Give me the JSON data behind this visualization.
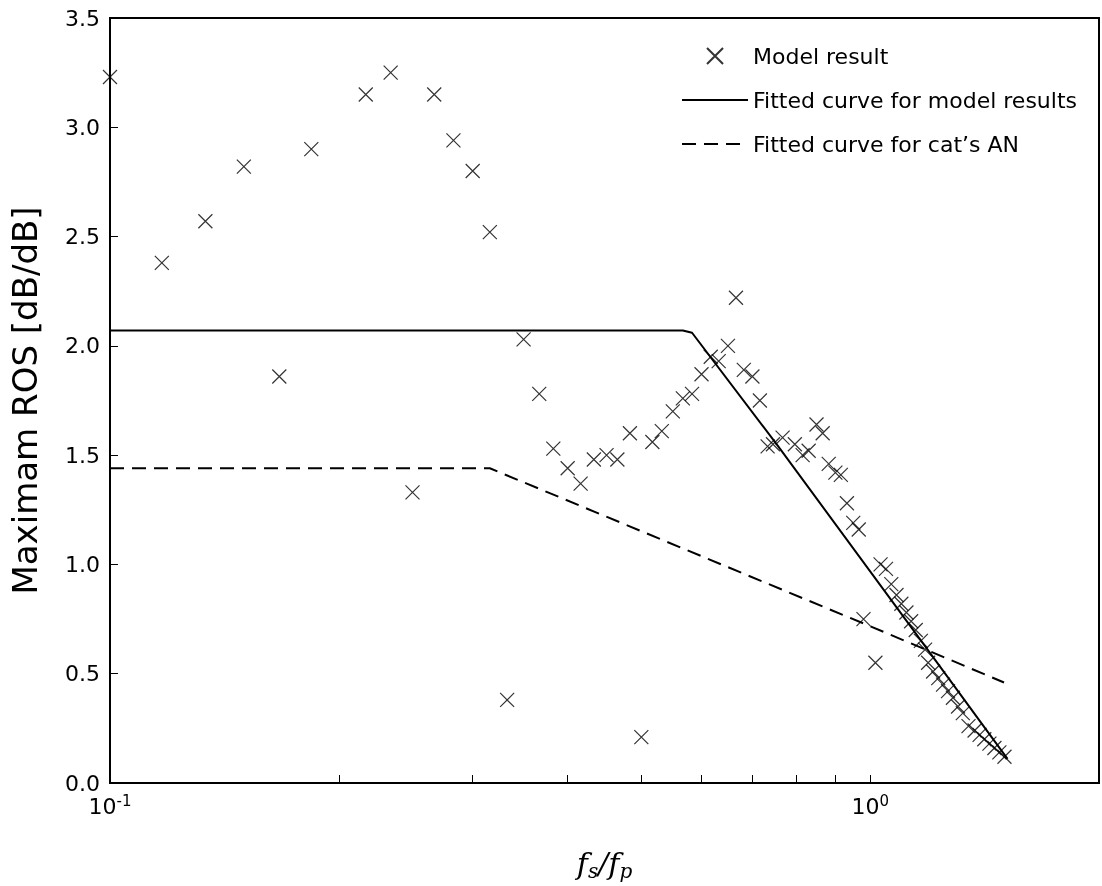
{
  "chart_data": {
    "type": "scatter",
    "xlabel": "f$_{s}$/f$_{p}$",
    "ylabel": "Maximam ROS [dB/dB]",
    "log": "x",
    "xlim": [
      0.1,
      2
    ],
    "ylim": [
      0,
      3.5
    ],
    "xticks": [
      {
        "value": 0.1,
        "label": "10$^{-1}$"
      },
      {
        "value": 0.2,
        "label": null
      },
      {
        "value": 0.3,
        "label": null
      },
      {
        "value": 0.4,
        "label": null
      },
      {
        "value": 0.5,
        "label": null
      },
      {
        "value": 0.6,
        "label": null
      },
      {
        "value": 0.7,
        "label": null
      },
      {
        "value": 0.8,
        "label": null
      },
      {
        "value": 0.9,
        "label": null
      },
      {
        "value": 1,
        "label": "10$^{0}$"
      },
      {
        "value": 2,
        "label": null
      }
    ],
    "yticks": [
      {
        "value": 0,
        "label": "0.0"
      },
      {
        "value": 0.5,
        "label": "0.5"
      },
      {
        "value": 1,
        "label": "1.0"
      },
      {
        "value": 1.5,
        "label": "1.5"
      },
      {
        "value": 2,
        "label": "2.0"
      },
      {
        "value": 2.5,
        "label": "2.5"
      },
      {
        "value": 3,
        "label": "3.0"
      },
      {
        "value": 3.5,
        "label": "3.5"
      }
    ],
    "grid": false,
    "legend": "top right",
    "series": [
      {
        "name": "Model result",
        "marker": "cross",
        "color": "#000000",
        "x": [
          0.1,
          0.117,
          0.1335,
          0.15,
          0.167,
          0.184,
          0.217,
          0.234,
          0.25,
          0.267,
          0.283,
          0.3,
          0.316,
          0.333,
          0.35,
          0.367,
          0.383,
          0.4,
          0.416,
          0.433,
          0.45,
          0.465,
          0.483,
          0.5,
          0.517,
          0.532,
          0.55,
          0.567,
          0.583,
          0.6,
          0.617,
          0.632,
          0.65,
          0.666,
          0.682,
          0.7,
          0.716,
          0.733,
          0.745,
          0.767,
          0.796,
          0.815,
          0.83,
          0.85,
          0.866,
          0.882,
          0.9,
          0.915,
          0.932,
          0.95,
          0.966,
          0.98,
          1.016,
          1.032,
          1.049,
          1.066,
          1.083,
          1.099,
          1.116,
          1.132,
          1.148,
          1.166,
          1.181,
          1.192,
          1.21,
          1.229,
          1.247,
          1.266,
          1.285,
          1.305,
          1.324,
          1.347,
          1.372,
          1.393,
          1.413,
          1.435,
          1.457,
          1.479,
          1.502
        ],
        "values": [
          3.23,
          2.38,
          2.57,
          2.82,
          1.86,
          2.9,
          3.15,
          3.25,
          1.33,
          3.15,
          2.94,
          2.8,
          2.52,
          0.38,
          2.03,
          1.78,
          1.53,
          1.44,
          1.37,
          1.48,
          1.5,
          1.48,
          1.6,
          0.21,
          1.56,
          1.61,
          1.7,
          1.76,
          1.78,
          1.87,
          1.95,
          1.93,
          2.0,
          2.22,
          1.89,
          1.86,
          1.75,
          1.54,
          1.55,
          1.58,
          1.55,
          1.5,
          1.52,
          1.64,
          1.6,
          1.46,
          1.42,
          1.41,
          1.28,
          1.19,
          1.16,
          0.75,
          0.55,
          1.0,
          0.98,
          0.91,
          0.86,
          0.82,
          0.78,
          0.74,
          0.7,
          0.65,
          0.61,
          0.55,
          0.51,
          0.48,
          0.45,
          0.42,
          0.39,
          0.35,
          0.32,
          0.26,
          0.24,
          0.22,
          0.2,
          0.18,
          0.16,
          0.14,
          0.12
        ]
      },
      {
        "name": "Fitted curve for model results",
        "type": "line",
        "line_style": "solid",
        "marker": "none",
        "color": "#000000",
        "x": [
          0.1,
          0.567,
          0.583,
          0.757,
          1.134,
          1.516
        ],
        "values": [
          2.07,
          2.07,
          2.06,
          1.54,
          0.71,
          0.11
        ]
      },
      {
        "name": "Fitted curve for cat’s AN",
        "type": "line",
        "line_style": "dashed",
        "marker": "none",
        "color": "#000000",
        "x": [
          0.1,
          0.316,
          0.98,
          1.5
        ],
        "values": [
          1.44,
          1.44,
          0.73,
          0.46
        ]
      }
    ]
  }
}
